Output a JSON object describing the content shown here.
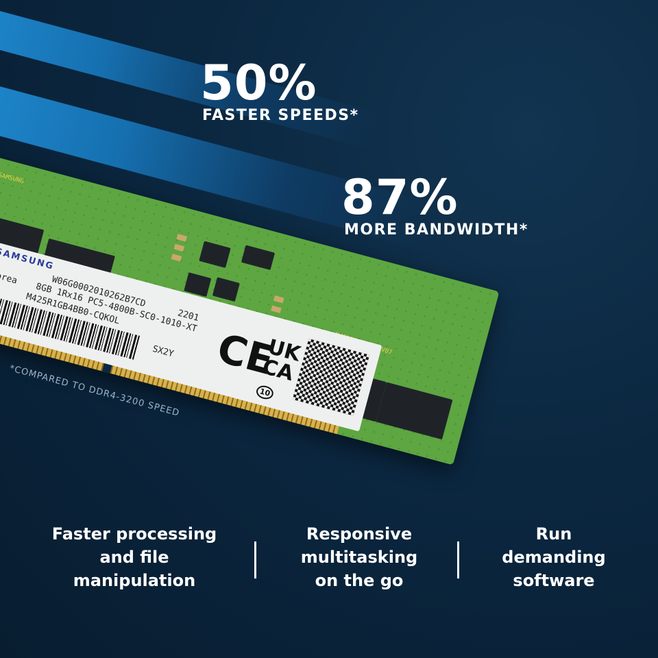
{
  "headline_1": {
    "value": "50%",
    "caption": "FASTER SPEEDS*"
  },
  "headline_2": {
    "value": "87%",
    "caption": "MORE BANDWIDTH*"
  },
  "footnote": "*COMPARED TO DDR4-3200 SPEED",
  "module_label": {
    "brand": "SAMSUNG",
    "origin": "Korea",
    "serial": "W06G0002010262B7CD",
    "spec": "8GB 1Rx16 PC5-4800B-SC0-1010-XT",
    "part": "M425R1GB4BB0-CQKOL",
    "date_code": "2201",
    "lot": "SX2Y",
    "ce_mark": "CE",
    "ukca_mark": "UKCA",
    "ukca_number": "10"
  },
  "silkscreen": {
    "brand": "SAMSUNG",
    "part": "M425R1GB4BB0-V07"
  },
  "features": [
    {
      "lines": [
        "Faster processing",
        "and file",
        "manipulation"
      ]
    },
    {
      "lines": [
        "Responsive",
        "multitasking",
        "on the go"
      ]
    },
    {
      "lines": [
        "Run",
        "demanding",
        "software"
      ]
    }
  ],
  "colors": {
    "background": "#0b2740",
    "stripe": "#1f8ad0",
    "pcb": "#5da641",
    "text": "#ffffff"
  }
}
